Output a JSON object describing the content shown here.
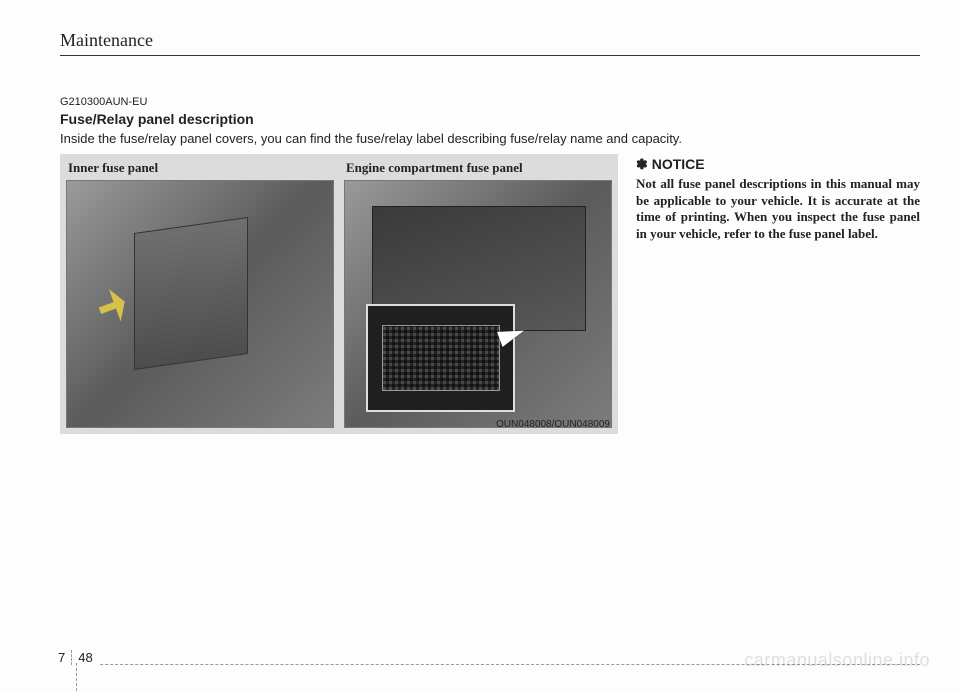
{
  "header": {
    "title": "Maintenance"
  },
  "section": {
    "code": "G210300AUN-EU",
    "title": "Fuse/Relay panel description",
    "description": "Inside the fuse/relay panel covers, you can find the fuse/relay label describing fuse/relay name and capacity."
  },
  "figure": {
    "left_caption": "Inner fuse panel",
    "right_caption": "Engine compartment fuse panel",
    "image_code": "OUN048008/OUN048009",
    "background": "#dcdcdc"
  },
  "notice": {
    "symbol": "✽",
    "heading": "NOTICE",
    "body": "Not all fuse panel descriptions in this manual may be applicable to your vehicle. It is accurate at the time of printing. When you inspect the fuse panel in your vehicle, refer to the fuse panel label."
  },
  "footer": {
    "chapter": "7",
    "page": "48"
  },
  "watermark": "carmanualsonline.info"
}
